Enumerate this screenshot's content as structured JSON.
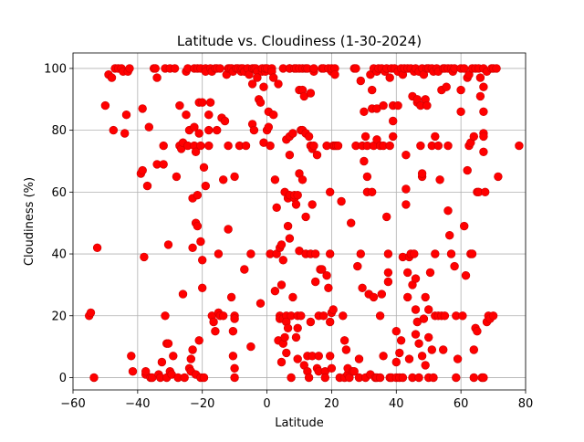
{
  "chart_data": {
    "type": "scatter",
    "title": "Latitude vs. Cloudiness (1-30-2024)",
    "xlabel": "Latitude",
    "ylabel": "Cloudiness (%)",
    "xlim": [
      -60,
      80
    ],
    "ylim": [
      -4,
      105
    ],
    "xticks": [
      -60,
      -40,
      -20,
      0,
      20,
      40,
      60,
      80
    ],
    "yticks": [
      0,
      20,
      40,
      60,
      80,
      100
    ],
    "grid": true,
    "marker_color": "#ff0000",
    "edge_color": "#cc0000",
    "points": [
      [
        -55,
        20
      ],
      [
        -54.5,
        21
      ],
      [
        -53.5,
        0
      ],
      [
        -52.5,
        42
      ],
      [
        -50,
        88
      ],
      [
        -49,
        98
      ],
      [
        -48,
        97
      ],
      [
        -47.5,
        80
      ],
      [
        -47,
        100
      ],
      [
        -46,
        100
      ],
      [
        -45,
        100
      ],
      [
        -44.5,
        99
      ],
      [
        -44,
        79
      ],
      [
        -43.5,
        85
      ],
      [
        -43,
        99
      ],
      [
        -42.5,
        100
      ],
      [
        -42,
        7
      ],
      [
        -41.5,
        2
      ],
      [
        -39,
        66
      ],
      [
        -38.5,
        67
      ],
      [
        -38.5,
        87
      ],
      [
        -38,
        39
      ],
      [
        -37.5,
        1
      ],
      [
        -37.5,
        2
      ],
      [
        -37,
        62
      ],
      [
        -36.5,
        81
      ],
      [
        -36,
        0
      ],
      [
        -35.5,
        0
      ],
      [
        -35,
        100
      ],
      [
        -34.5,
        100
      ],
      [
        -34,
        97
      ],
      [
        -34,
        69
      ],
      [
        -33.5,
        1
      ],
      [
        -33,
        0
      ],
      [
        -32.5,
        5
      ],
      [
        -32,
        69
      ],
      [
        -32,
        75
      ],
      [
        -31.5,
        100
      ],
      [
        -31.5,
        20
      ],
      [
        -31,
        11
      ],
      [
        -31,
        0
      ],
      [
        -30.5,
        43
      ],
      [
        -30.5,
        11
      ],
      [
        -30,
        100
      ],
      [
        -30,
        2
      ],
      [
        -29.5,
        1
      ],
      [
        -29,
        7
      ],
      [
        -28.5,
        100
      ],
      [
        -28,
        65
      ],
      [
        -27.5,
        0
      ],
      [
        -27,
        75
      ],
      [
        -27,
        88
      ],
      [
        -26.5,
        74
      ],
      [
        -26,
        76
      ],
      [
        -26,
        27
      ],
      [
        -25.5,
        0
      ],
      [
        -25,
        99
      ],
      [
        -25,
        85
      ],
      [
        -24.5,
        100
      ],
      [
        -24.5,
        75
      ],
      [
        -24,
        80
      ],
      [
        -24,
        3
      ],
      [
        -23.5,
        2
      ],
      [
        -23.5,
        6
      ],
      [
        -23,
        58
      ],
      [
        -23,
        42
      ],
      [
        -23,
        9
      ],
      [
        -22.5,
        100
      ],
      [
        -22.5,
        81
      ],
      [
        -22.5,
        75
      ],
      [
        -22,
        73
      ],
      [
        -22,
        50
      ],
      [
        -22,
        1
      ],
      [
        -21.5,
        100
      ],
      [
        -21.5,
        59
      ],
      [
        -21.5,
        49
      ],
      [
        -21,
        89
      ],
      [
        -21,
        79
      ],
      [
        -21,
        12
      ],
      [
        -20.5,
        100
      ],
      [
        -20.5,
        75
      ],
      [
        -20.5,
        0
      ],
      [
        -20.5,
        44
      ],
      [
        -20,
        89
      ],
      [
        -20,
        38
      ],
      [
        -20,
        29
      ],
      [
        -19.5,
        68
      ],
      [
        -19.5,
        0
      ],
      [
        -19,
        100
      ],
      [
        -19,
        99
      ],
      [
        -19,
        62
      ],
      [
        -18,
        75
      ],
      [
        -18,
        85
      ],
      [
        -18,
        80
      ],
      [
        -17.5,
        89
      ],
      [
        -17.5,
        100
      ],
      [
        -17,
        99
      ],
      [
        -17,
        20
      ],
      [
        -16.5,
        18
      ],
      [
        -16,
        100
      ],
      [
        -16,
        15
      ],
      [
        -15.5,
        80
      ],
      [
        -15.5,
        100
      ],
      [
        -15,
        40
      ],
      [
        -15,
        21
      ],
      [
        -14.5,
        100
      ],
      [
        -14.5,
        20
      ],
      [
        -14,
        84
      ],
      [
        -13.5,
        20
      ],
      [
        -13.5,
        64
      ],
      [
        -13,
        83
      ],
      [
        -12.5,
        98
      ],
      [
        -12,
        100
      ],
      [
        -12,
        48
      ],
      [
        -12,
        75
      ],
      [
        -11.5,
        100
      ],
      [
        -11,
        100
      ],
      [
        -11,
        26
      ],
      [
        -10.5,
        99
      ],
      [
        -10.5,
        7
      ],
      [
        -10.5,
        15
      ],
      [
        -10,
        65
      ],
      [
        -10,
        20
      ],
      [
        -10,
        19
      ],
      [
        -10,
        3
      ],
      [
        -10,
        0
      ],
      [
        -9.5,
        100
      ],
      [
        -9,
        100
      ],
      [
        -8.5,
        75
      ],
      [
        -8,
        99
      ],
      [
        -8,
        100
      ],
      [
        -7.5,
        100
      ],
      [
        -7,
        35
      ],
      [
        -7,
        99
      ],
      [
        -6.5,
        75
      ],
      [
        -6,
        100
      ],
      [
        -5.5,
        98
      ],
      [
        -5,
        10
      ],
      [
        -5,
        40
      ],
      [
        -4.5,
        100
      ],
      [
        -4.5,
        95
      ],
      [
        -4.5,
        82
      ],
      [
        -4,
        80
      ],
      [
        -4,
        100
      ],
      [
        -3.5,
        100
      ],
      [
        -3,
        99
      ],
      [
        -3,
        97
      ],
      [
        -2.5,
        90
      ],
      [
        -2,
        89
      ],
      [
        -2,
        24
      ],
      [
        -1.5,
        99
      ],
      [
        -1.5,
        100
      ],
      [
        -1,
        76
      ],
      [
        -1,
        94
      ],
      [
        -0.5,
        99
      ],
      [
        -0.5,
        100
      ],
      [
        0,
        100
      ],
      [
        0,
        80
      ],
      [
        0.5,
        81
      ],
      [
        0.5,
        86
      ],
      [
        1,
        75
      ],
      [
        1,
        40
      ],
      [
        1.5,
        100
      ],
      [
        1.5,
        99
      ],
      [
        2,
        85
      ],
      [
        2,
        97
      ],
      [
        2.5,
        64
      ],
      [
        2.5,
        28
      ],
      [
        3,
        55
      ],
      [
        3,
        40
      ],
      [
        3.5,
        95
      ],
      [
        3.5,
        12
      ],
      [
        4,
        20
      ],
      [
        4,
        19
      ],
      [
        4,
        42
      ],
      [
        4.5,
        43
      ],
      [
        4.5,
        30
      ],
      [
        4.5,
        5
      ],
      [
        5,
        100
      ],
      [
        5,
        38
      ],
      [
        5,
        19
      ],
      [
        5,
        11
      ],
      [
        5.5,
        60
      ],
      [
        5.5,
        13
      ],
      [
        6,
        77
      ],
      [
        6,
        20
      ],
      [
        6,
        18
      ],
      [
        6,
        8
      ],
      [
        6.5,
        58
      ],
      [
        6.5,
        49
      ],
      [
        6.5,
        16
      ],
      [
        7,
        100
      ],
      [
        7,
        100
      ],
      [
        7,
        78
      ],
      [
        7,
        72
      ],
      [
        7,
        59
      ],
      [
        7,
        45
      ],
      [
        7.5,
        20
      ],
      [
        7.5,
        0
      ],
      [
        8,
        79
      ],
      [
        8,
        26
      ],
      [
        8.5,
        100
      ],
      [
        8.5,
        58
      ],
      [
        8.5,
        59
      ],
      [
        9,
        100
      ],
      [
        9,
        56
      ],
      [
        9,
        13
      ],
      [
        9.5,
        59
      ],
      [
        9.5,
        20
      ],
      [
        9.5,
        6
      ],
      [
        9.5,
        16
      ],
      [
        10,
        100
      ],
      [
        10,
        93
      ],
      [
        10,
        66
      ],
      [
        10,
        41
      ],
      [
        10.5,
        20
      ],
      [
        10.5,
        80
      ],
      [
        11,
        100
      ],
      [
        11,
        93
      ],
      [
        11,
        80
      ],
      [
        11,
        64
      ],
      [
        11.5,
        91
      ],
      [
        11.5,
        4
      ],
      [
        12,
        100
      ],
      [
        12,
        79
      ],
      [
        12,
        52
      ],
      [
        12,
        40
      ],
      [
        12.5,
        100
      ],
      [
        12.5,
        7
      ],
      [
        12.5,
        2
      ],
      [
        13,
        78
      ],
      [
        13,
        0
      ],
      [
        13.5,
        92
      ],
      [
        13.5,
        75
      ],
      [
        13.5,
        40
      ],
      [
        13.5,
        18
      ],
      [
        14,
        74
      ],
      [
        14,
        56
      ],
      [
        14,
        7
      ],
      [
        14.5,
        99
      ],
      [
        14.5,
        100
      ],
      [
        14.5,
        75
      ],
      [
        15,
        40
      ],
      [
        15,
        31
      ],
      [
        15.5,
        72
      ],
      [
        15.5,
        3
      ],
      [
        16,
        20
      ],
      [
        16,
        7
      ],
      [
        16,
        2
      ],
      [
        16.5,
        35
      ],
      [
        17,
        100
      ],
      [
        17,
        35
      ],
      [
        17.5,
        100
      ],
      [
        17.5,
        20
      ],
      [
        18,
        2
      ],
      [
        18,
        0
      ],
      [
        18.5,
        75
      ],
      [
        18.5,
        33
      ],
      [
        19,
        100
      ],
      [
        19,
        29
      ],
      [
        19.5,
        60
      ],
      [
        19.5,
        40
      ],
      [
        19.5,
        18
      ],
      [
        19.5,
        7
      ],
      [
        20,
        99
      ],
      [
        20,
        100
      ],
      [
        20,
        21
      ],
      [
        20,
        3
      ],
      [
        20.5,
        75
      ],
      [
        20.5,
        22
      ],
      [
        21,
        100
      ],
      [
        21,
        75
      ],
      [
        21,
        98
      ],
      [
        21.5,
        75
      ],
      [
        22,
        75
      ],
      [
        22.5,
        0
      ],
      [
        23,
        57
      ],
      [
        23.5,
        20
      ],
      [
        24,
        12
      ],
      [
        24,
        0
      ],
      [
        24.5,
        9
      ],
      [
        25,
        1
      ],
      [
        25,
        3
      ],
      [
        25.5,
        0
      ],
      [
        26,
        50
      ],
      [
        26.5,
        2
      ],
      [
        27,
        100
      ],
      [
        27,
        2
      ],
      [
        27.5,
        100
      ],
      [
        27.5,
        75
      ],
      [
        28,
        36
      ],
      [
        28.5,
        0
      ],
      [
        28.5,
        6
      ],
      [
        29,
        96
      ],
      [
        29,
        40
      ],
      [
        29.5,
        75
      ],
      [
        29.5,
        29
      ],
      [
        30,
        86
      ],
      [
        30,
        70
      ],
      [
        30.5,
        0
      ],
      [
        30.5,
        78
      ],
      [
        31,
        75
      ],
      [
        31,
        65
      ],
      [
        31,
        60
      ],
      [
        31.5,
        27
      ],
      [
        32,
        1
      ],
      [
        32,
        98
      ],
      [
        32.5,
        93
      ],
      [
        32.5,
        87
      ],
      [
        32.5,
        60
      ],
      [
        33,
        100
      ],
      [
        33,
        75
      ],
      [
        33,
        26
      ],
      [
        33.5,
        0
      ],
      [
        34,
        99
      ],
      [
        34,
        87
      ],
      [
        34,
        77
      ],
      [
        34,
        0
      ],
      [
        34.5,
        100
      ],
      [
        35,
        75
      ],
      [
        35,
        20
      ],
      [
        35,
        0
      ],
      [
        35.5,
        100
      ],
      [
        35.5,
        27
      ],
      [
        36,
        88
      ],
      [
        36,
        75
      ],
      [
        36,
        7
      ],
      [
        36.5,
        99
      ],
      [
        37,
        100
      ],
      [
        37,
        52
      ],
      [
        37.5,
        40
      ],
      [
        37.5,
        34
      ],
      [
        37.5,
        31
      ],
      [
        38,
        0
      ],
      [
        38,
        97
      ],
      [
        38,
        75
      ],
      [
        38.5,
        100
      ],
      [
        38.5,
        0
      ],
      [
        39,
        88
      ],
      [
        39,
        83
      ],
      [
        39,
        78
      ],
      [
        39.5,
        100
      ],
      [
        40,
        0
      ],
      [
        40,
        15
      ],
      [
        40,
        5
      ],
      [
        40.5,
        99
      ],
      [
        40.5,
        88
      ],
      [
        41,
        0
      ],
      [
        41,
        8
      ],
      [
        41.5,
        100
      ],
      [
        41.5,
        12
      ],
      [
        42,
        98
      ],
      [
        42,
        39
      ],
      [
        42,
        0
      ],
      [
        42.5,
        100
      ],
      [
        43,
        72
      ],
      [
        43,
        56
      ],
      [
        43,
        61
      ],
      [
        43.5,
        100
      ],
      [
        43.5,
        34
      ],
      [
        43.5,
        26
      ],
      [
        44,
        39
      ],
      [
        44,
        6
      ],
      [
        44.5,
        100
      ],
      [
        44.5,
        40
      ],
      [
        45,
        91
      ],
      [
        45,
        30
      ],
      [
        45,
        0
      ],
      [
        45.5,
        99
      ],
      [
        45.5,
        40
      ],
      [
        46,
        100
      ],
      [
        46,
        22
      ],
      [
        46,
        14
      ],
      [
        46,
        32
      ],
      [
        46.5,
        89
      ],
      [
        46.5,
        90
      ],
      [
        46.5,
        18
      ],
      [
        47,
        99
      ],
      [
        47,
        11
      ],
      [
        47,
        0
      ],
      [
        47.5,
        88
      ],
      [
        47.5,
        75
      ],
      [
        48,
        100
      ],
      [
        48,
        65
      ],
      [
        48,
        66
      ],
      [
        48,
        7
      ],
      [
        48.5,
        19
      ],
      [
        48.5,
        98
      ],
      [
        49,
        90
      ],
      [
        49,
        26
      ],
      [
        49,
        4
      ],
      [
        49.5,
        100
      ],
      [
        49.5,
        88
      ],
      [
        50,
        100
      ],
      [
        50,
        22
      ],
      [
        50,
        13
      ],
      [
        50,
        0
      ],
      [
        50.5,
        34
      ],
      [
        51,
        100
      ],
      [
        51,
        75
      ],
      [
        51,
        9
      ],
      [
        51.5,
        99
      ],
      [
        51.5,
        0
      ],
      [
        52,
        78
      ],
      [
        52,
        40
      ],
      [
        52,
        20
      ],
      [
        52.5,
        100
      ],
      [
        53,
        99
      ],
      [
        53,
        75
      ],
      [
        53,
        20
      ],
      [
        53.5,
        64
      ],
      [
        54,
        93
      ],
      [
        54,
        20
      ],
      [
        54.5,
        100
      ],
      [
        54.5,
        9
      ],
      [
        55,
        100
      ],
      [
        55,
        20
      ],
      [
        55.5,
        94
      ],
      [
        56,
        100
      ],
      [
        56,
        75
      ],
      [
        56,
        54
      ],
      [
        56.5,
        46
      ],
      [
        57,
        100
      ],
      [
        57,
        40
      ],
      [
        57.5,
        99
      ],
      [
        58,
        100
      ],
      [
        58,
        36
      ],
      [
        58.5,
        20
      ],
      [
        58.5,
        0
      ],
      [
        59,
        6
      ],
      [
        60,
        100
      ],
      [
        60,
        93
      ],
      [
        60,
        86
      ],
      [
        60.5,
        20
      ],
      [
        61,
        100
      ],
      [
        61,
        49
      ],
      [
        61.5,
        33
      ],
      [
        62,
        97
      ],
      [
        62,
        67
      ],
      [
        62.5,
        98
      ],
      [
        62.5,
        75
      ],
      [
        63,
        76
      ],
      [
        63,
        40
      ],
      [
        63.5,
        100
      ],
      [
        63.5,
        40
      ],
      [
        64,
        78
      ],
      [
        64,
        9
      ],
      [
        64,
        0
      ],
      [
        64.5,
        100
      ],
      [
        64.5,
        16
      ],
      [
        65,
        15
      ],
      [
        65,
        60
      ],
      [
        65.5,
        100
      ],
      [
        65.5,
        60
      ],
      [
        66,
        97
      ],
      [
        66,
        91
      ],
      [
        66.5,
        0
      ],
      [
        67,
        100
      ],
      [
        67,
        86
      ],
      [
        67,
        94
      ],
      [
        67,
        79
      ],
      [
        67,
        78
      ],
      [
        67,
        73
      ],
      [
        67,
        0
      ],
      [
        67.5,
        60
      ],
      [
        68,
        99
      ],
      [
        68,
        18
      ],
      [
        68.5,
        20
      ],
      [
        69,
        19
      ],
      [
        69.5,
        100
      ],
      [
        70,
        100
      ],
      [
        70,
        20
      ],
      [
        71,
        100
      ],
      [
        71.5,
        65
      ],
      [
        78,
        75
      ]
    ]
  }
}
